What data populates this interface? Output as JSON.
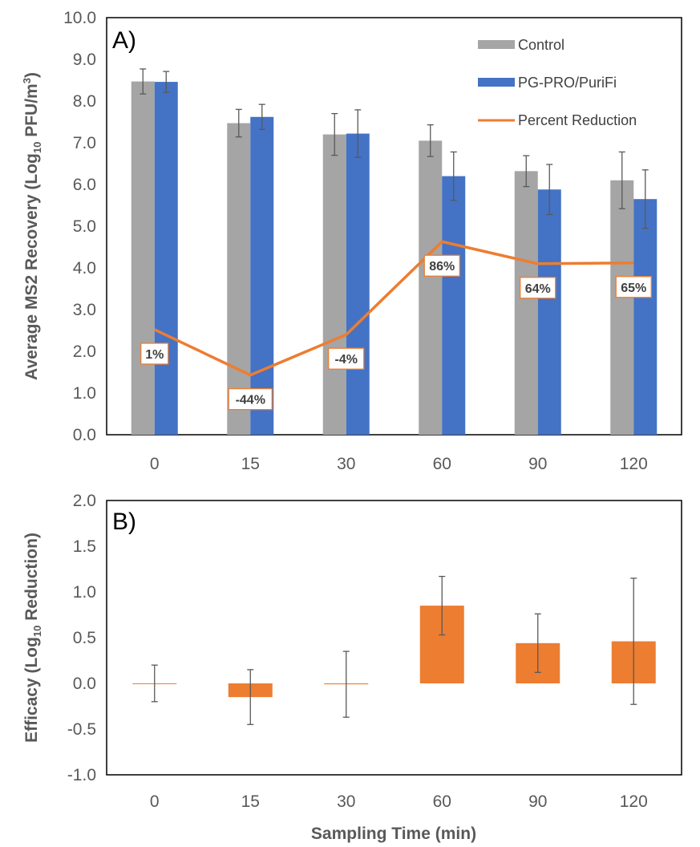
{
  "chart_data": [
    {
      "type": "bar",
      "panel_label": "A)",
      "categories": [
        "0",
        "15",
        "30",
        "60",
        "90",
        "120"
      ],
      "ylabel": {
        "pre": "Average MS2 Recovery (Log",
        "sub": "10",
        "mid": " PFU/m",
        "sup": "3",
        "post": ")"
      },
      "ylim": [
        0,
        10
      ],
      "yticks": [
        "0.0",
        "1.0",
        "2.0",
        "3.0",
        "4.0",
        "5.0",
        "6.0",
        "7.0",
        "8.0",
        "9.0",
        "10.0"
      ],
      "series": [
        {
          "name": "Control",
          "color": "#a5a5a5",
          "values": [
            8.47,
            7.47,
            7.2,
            7.05,
            6.32,
            6.1
          ],
          "err": [
            0.3,
            0.33,
            0.5,
            0.38,
            0.37,
            0.68
          ]
        },
        {
          "name": "PG-PRO/PuriFi",
          "color": "#4472c4",
          "values": [
            8.46,
            7.62,
            7.22,
            6.2,
            5.88,
            5.65
          ],
          "err": [
            0.25,
            0.3,
            0.57,
            0.58,
            0.6,
            0.7
          ]
        }
      ],
      "line_series": {
        "name": "Percent Reduction",
        "color": "#ed7d31",
        "values": [
          2.52,
          1.43,
          2.4,
          4.63,
          4.1,
          4.12
        ],
        "data_labels": [
          "1%",
          "-44%",
          "-4%",
          "86%",
          "64%",
          "65%"
        ]
      },
      "legend_position": "top-right",
      "grid": false
    },
    {
      "type": "bar",
      "panel_label": "B)",
      "categories": [
        "0",
        "15",
        "30",
        "60",
        "90",
        "120"
      ],
      "xlabel": "Sampling Time (min)",
      "ylabel": {
        "pre": "Efficacy (Log",
        "sub": "10",
        "post": " Reduction)"
      },
      "ylim": [
        -1,
        2
      ],
      "yticks": [
        "-1.0",
        "-0.5",
        "0.0",
        "0.5",
        "1.0",
        "1.5",
        "2.0"
      ],
      "series": [
        {
          "name": "Efficacy",
          "color": "#ed7d31",
          "values": [
            0.0,
            -0.15,
            -0.01,
            0.85,
            0.44,
            0.46
          ],
          "err": [
            0.2,
            0.3,
            0.36,
            0.32,
            0.32,
            0.69
          ]
        }
      ],
      "grid": false
    }
  ]
}
